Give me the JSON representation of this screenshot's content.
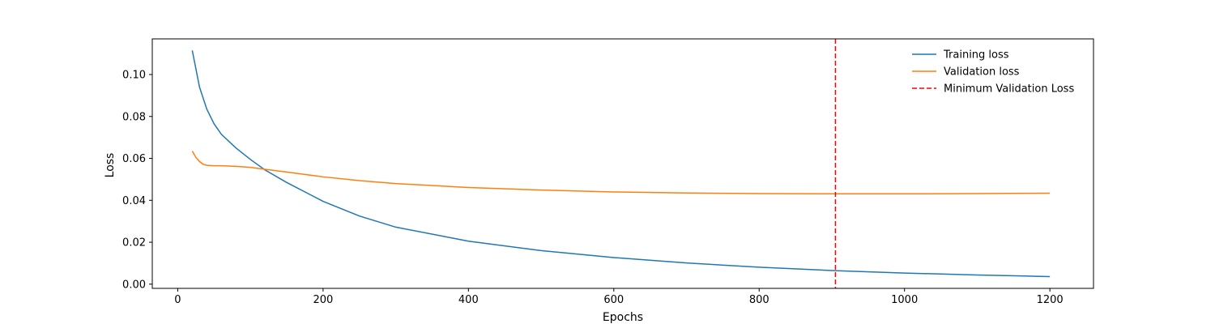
{
  "chart_data": {
    "type": "line",
    "xlabel": "Epochs",
    "ylabel": "Loss",
    "xlim": [
      -35,
      1260
    ],
    "ylim": [
      -0.002,
      0.117
    ],
    "xticks": [
      0,
      200,
      400,
      600,
      800,
      1000,
      1200
    ],
    "yticks": [
      0.0,
      0.02,
      0.04,
      0.06,
      0.08,
      0.1
    ],
    "xtick_labels": [
      "0",
      "200",
      "400",
      "600",
      "800",
      "1000",
      "1200"
    ],
    "ytick_labels": [
      "0.00",
      "0.02",
      "0.04",
      "0.06",
      "0.08",
      "0.10"
    ],
    "grid": false,
    "legend_position": "top-right",
    "series": [
      {
        "name": "Training loss",
        "color": "#1f77b4",
        "style": "solid",
        "x": [
          20,
          30,
          40,
          50,
          60,
          80,
          100,
          120,
          150,
          200,
          250,
          300,
          400,
          500,
          600,
          700,
          800,
          900,
          1000,
          1100,
          1200
        ],
        "y": [
          0.1115,
          0.094,
          0.0835,
          0.0765,
          0.0715,
          0.065,
          0.0595,
          0.0545,
          0.0485,
          0.0395,
          0.0325,
          0.0272,
          0.0205,
          0.016,
          0.0127,
          0.0101,
          0.0081,
          0.0065,
          0.0053,
          0.0044,
          0.0036
        ]
      },
      {
        "name": "Validation loss",
        "color": "#ff7f0e",
        "style": "solid",
        "x": [
          20,
          25,
          30,
          35,
          40,
          50,
          60,
          80,
          100,
          120,
          150,
          200,
          250,
          300,
          400,
          500,
          600,
          700,
          800,
          900,
          1000,
          1100,
          1200
        ],
        "y": [
          0.0635,
          0.0605,
          0.0585,
          0.0572,
          0.0567,
          0.0565,
          0.0565,
          0.0562,
          0.0557,
          0.0548,
          0.0535,
          0.0512,
          0.0494,
          0.048,
          0.0461,
          0.0449,
          0.044,
          0.0435,
          0.0432,
          0.0431,
          0.0431,
          0.0432,
          0.0434
        ]
      }
    ],
    "vlines": [
      {
        "name": "Minimum Validation Loss",
        "x": 905,
        "color": "#ff0000",
        "style": "dashed"
      }
    ]
  }
}
